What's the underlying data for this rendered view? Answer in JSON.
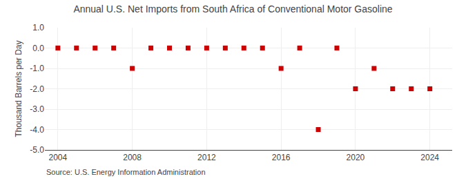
{
  "chart_data": {
    "type": "scatter",
    "title": "Annual U.S. Net Imports from South Africa of Conventional Motor Gasoline",
    "y_label": "Thousand Barrels per Day",
    "annotations": [
      "Source: U.S. Energy Information Administration"
    ],
    "x": [
      2004,
      2005,
      2006,
      2007,
      2008,
      2009,
      2010,
      2011,
      2012,
      2013,
      2014,
      2015,
      2016,
      2017,
      2018,
      2019,
      2020,
      2021,
      2022,
      2023,
      2024
    ],
    "values": [
      0,
      0,
      0,
      0,
      -1,
      0,
      0,
      0,
      0,
      0,
      0,
      0,
      -1,
      0,
      -4,
      0,
      -2,
      -1,
      -2,
      -2,
      -2
    ],
    "color": "#cc0000",
    "marker": "square",
    "xlim": [
      2003.3,
      2025.2
    ],
    "xticks": [
      2004,
      2008,
      2012,
      2016,
      2020,
      2024
    ],
    "ylim": [
      -5.0,
      1.0
    ],
    "yticks": [
      {
        "value": 1.0,
        "label": "1.0"
      },
      {
        "value": 0.0,
        "label": "0.0"
      },
      {
        "value": -1.0,
        "label": "-1.0"
      },
      {
        "value": -2.0,
        "label": "-2.0"
      },
      {
        "value": -3.0,
        "label": "-3.0"
      },
      {
        "value": -4.0,
        "label": "-4.0"
      },
      {
        "value": -5.0,
        "label": "-5.0"
      }
    ],
    "grid": true
  }
}
